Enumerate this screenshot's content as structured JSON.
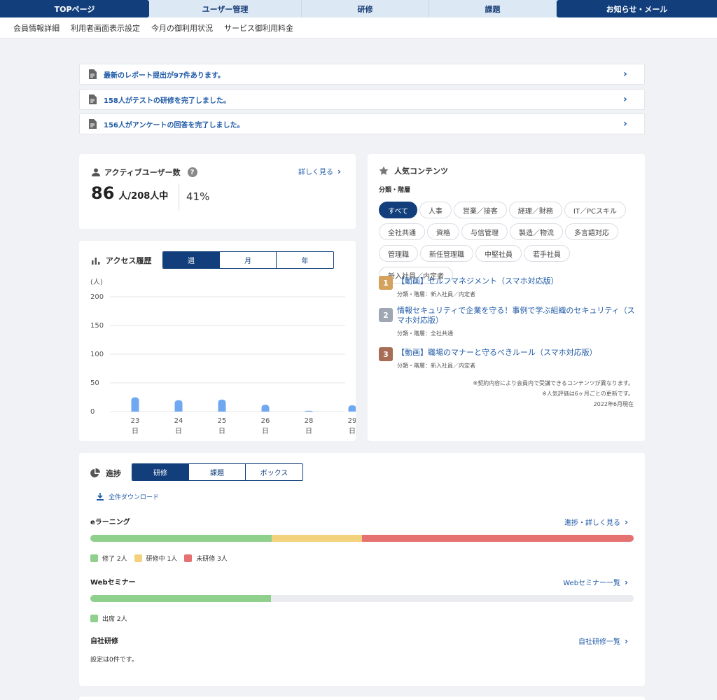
{
  "nav": {
    "tabs": [
      "TOPページ",
      "ユーザー管理",
      "研修",
      "課題",
      "お知らせ・メール"
    ]
  },
  "subnav": [
    "会員情報詳細",
    "利用者画面表示設定",
    "今月の御利用状況",
    "サービス御利用料金"
  ],
  "notices": [
    "最新のレポート提出が97件あります。",
    "158人がテストの研修を完了しました。",
    "156人がアンケートの回答を完了しました。"
  ],
  "active_users": {
    "title": "アクティブユーザー数",
    "help": "?",
    "detail_link": "詳しく見る",
    "count": "86",
    "count_unit": "人/208人中",
    "percent": "41%"
  },
  "access": {
    "title": "アクセス履歴",
    "periods": [
      "週",
      "月",
      "年"
    ],
    "selected_period": "週"
  },
  "chart_data": {
    "type": "bar",
    "ylabel": "(人)",
    "yticks": [
      0,
      50,
      100,
      150,
      200
    ],
    "ylim": [
      0,
      200
    ],
    "grid": true,
    "categories": [
      "23日",
      "24日",
      "25日",
      "26日",
      "28日",
      "29日"
    ],
    "category_top": [
      "23",
      "24",
      "25",
      "26",
      "28",
      "29"
    ],
    "category_bottom": [
      "日",
      "日",
      "日",
      "日",
      "日",
      "日"
    ],
    "values": [
      25,
      20,
      21,
      12,
      1,
      11
    ],
    "color": "#6fa8f0"
  },
  "popular": {
    "title": "人気コンテンツ",
    "filter_label": "分類・階層",
    "tags": [
      [
        "すべて",
        "人事",
        "営業／接客",
        "経理／財務",
        "IT／PCスキル"
      ],
      [
        "全社共通",
        "資格",
        "与信管理",
        "製造／物流",
        "多言語対応"
      ],
      [
        "管理職",
        "新任管理職",
        "中堅社員",
        "若手社員",
        "新入社員／内定者"
      ]
    ],
    "selected_tag": "すべて",
    "ranking": [
      {
        "rank": "1",
        "title": "【動画】セルフマネジメント（スマホ対応版）",
        "meta": "分類・階層：新入社員／内定者",
        "color": "#d4a25c"
      },
      {
        "rank": "2",
        "title": "情報セキュリティで企業を守る！事例で学ぶ組織のセキュリティ（スマホ対応版）",
        "meta": "分類・階層：全社共通",
        "color": "#9ea7b3"
      },
      {
        "rank": "3",
        "title": "【動画】職場のマナーと守るべきルール（スマホ対応版）",
        "meta": "分類・階層：新入社員／内定者",
        "color": "#a86e55"
      }
    ],
    "notes": [
      "※契約内容により会員内で受講できるコンテンツが異なります。",
      "※人気評価は6ヶ月ごとの更新です。",
      "2022年6月現在"
    ]
  },
  "progress": {
    "title": "進捗",
    "tabs": [
      "研修",
      "課題",
      "ボックス"
    ],
    "selected_tab": "研修",
    "download": "全件ダウンロード",
    "elearning": {
      "label": "eラーニング",
      "link": "進捗・詳しく見る",
      "segments": [
        {
          "label": "修了 2人",
          "count": 2,
          "color": "#8fd18c"
        },
        {
          "label": "研修中 1人",
          "count": 1,
          "color": "#f3d27d"
        },
        {
          "label": "未研修 3人",
          "count": 3,
          "color": "#e57171"
        }
      ]
    },
    "webinar": {
      "label": "Webセミナー",
      "link": "Webセミナー一覧",
      "segments": [
        {
          "label": "出席 2人",
          "fraction": 0.333,
          "color": "#8fd18c"
        }
      ]
    },
    "inhouse": {
      "label": "自社研修",
      "link": "自社研修一覧",
      "empty": "設定は0件です。"
    }
  }
}
